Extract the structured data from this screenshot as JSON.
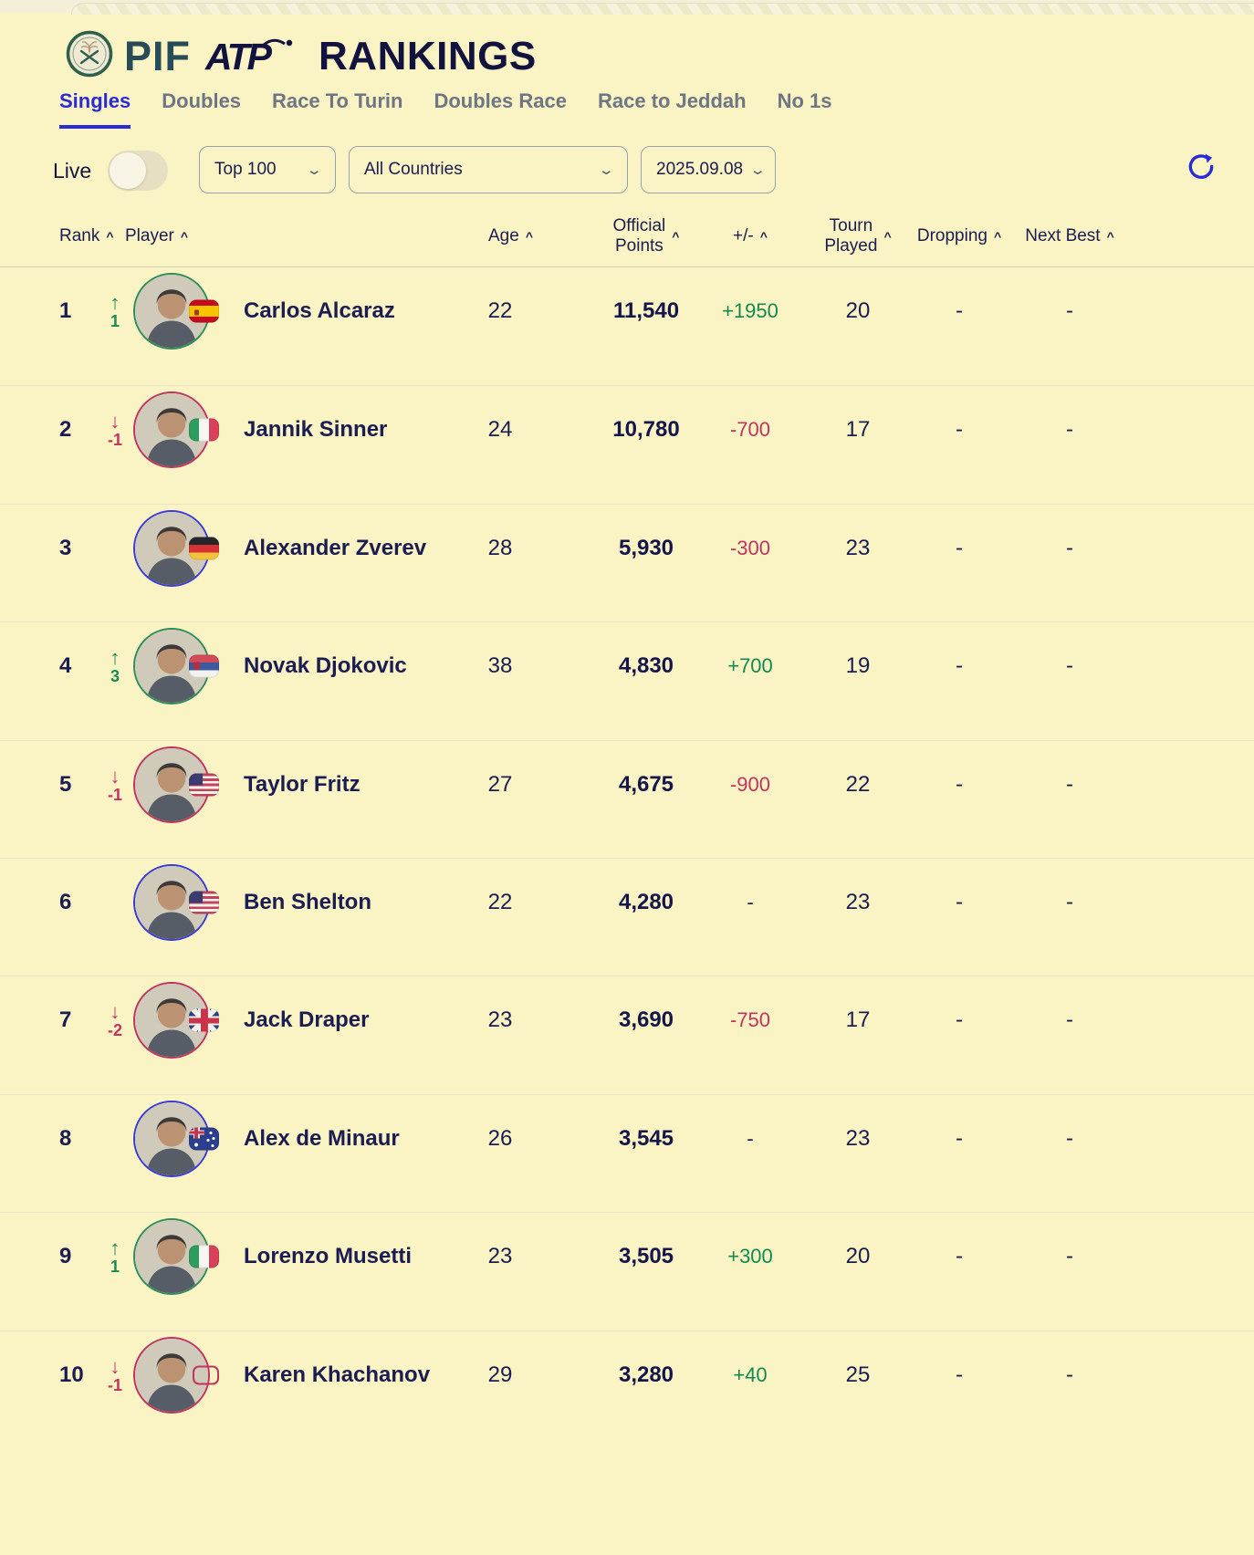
{
  "brand": {
    "pif": "PIF",
    "atp": "ATP",
    "rankings": "RANKINGS",
    "pif_logo_icon": "pif-seal-logo",
    "atp_logo_icon": "atp-logo"
  },
  "tabs": [
    {
      "label": "Singles",
      "active": true
    },
    {
      "label": "Doubles",
      "active": false
    },
    {
      "label": "Race To Turin",
      "active": false
    },
    {
      "label": "Doubles Race",
      "active": false
    },
    {
      "label": "Race to Jeddah",
      "active": false
    },
    {
      "label": "No 1s",
      "active": false
    }
  ],
  "filters": {
    "live_label": "Live",
    "live_on": false,
    "range_value": "Top 100",
    "country_value": "All Countries",
    "date_value": "2025.09.08",
    "chevron_icon": "chevron-down-icon",
    "refresh_icon": "refresh-circular-arrow-icon"
  },
  "columns": {
    "rank": "Rank",
    "player": "Player",
    "age": "Age",
    "points_line1": "Official",
    "points_line2": "Points",
    "delta": "+/-",
    "tourn_line1": "Tourn",
    "tourn_line2": "Played",
    "dropping": "Dropping",
    "next_best": "Next Best",
    "sort_caret": "^"
  },
  "movement_icons": {
    "up": "↑",
    "down": "↓"
  },
  "colors": {
    "background": "#faf3c4",
    "navy_text": "#1b1c52",
    "accent_blue": "#2b2bd6",
    "up_green": "#1a8a55",
    "down_crimson": "#c2335f",
    "no_change_blue": "#3b3bd8"
  },
  "table": {
    "rows": [
      {
        "rank": "1",
        "move": "up",
        "move_value": "1",
        "name": "Carlos Alcaraz",
        "flag": "es",
        "age": "22",
        "points": "11,540",
        "delta": "+1950",
        "delta_dir": "up",
        "tourn": "20",
        "dropping": "-",
        "next_best": "-"
      },
      {
        "rank": "2",
        "move": "down",
        "move_value": "-1",
        "name": "Jannik Sinner",
        "flag": "it",
        "age": "24",
        "points": "10,780",
        "delta": "-700",
        "delta_dir": "down",
        "tourn": "17",
        "dropping": "-",
        "next_best": "-"
      },
      {
        "rank": "3",
        "move": "none",
        "move_value": "",
        "name": "Alexander Zverev",
        "flag": "de",
        "age": "28",
        "points": "5,930",
        "delta": "-300",
        "delta_dir": "down",
        "tourn": "23",
        "dropping": "-",
        "next_best": "-"
      },
      {
        "rank": "4",
        "move": "up",
        "move_value": "3",
        "name": "Novak Djokovic",
        "flag": "rs",
        "age": "38",
        "points": "4,830",
        "delta": "+700",
        "delta_dir": "up",
        "tourn": "19",
        "dropping": "-",
        "next_best": "-"
      },
      {
        "rank": "5",
        "move": "down",
        "move_value": "-1",
        "name": "Taylor Fritz",
        "flag": "us",
        "age": "27",
        "points": "4,675",
        "delta": "-900",
        "delta_dir": "down",
        "tourn": "22",
        "dropping": "-",
        "next_best": "-"
      },
      {
        "rank": "6",
        "move": "none",
        "move_value": "",
        "name": "Ben Shelton",
        "flag": "us",
        "age": "22",
        "points": "4,280",
        "delta": "-",
        "delta_dir": "none",
        "tourn": "23",
        "dropping": "-",
        "next_best": "-"
      },
      {
        "rank": "7",
        "move": "down",
        "move_value": "-2",
        "name": "Jack Draper",
        "flag": "gb",
        "age": "23",
        "points": "3,690",
        "delta": "-750",
        "delta_dir": "down",
        "tourn": "17",
        "dropping": "-",
        "next_best": "-"
      },
      {
        "rank": "8",
        "move": "none",
        "move_value": "",
        "name": "Alex de Minaur",
        "flag": "au",
        "age": "26",
        "points": "3,545",
        "delta": "-",
        "delta_dir": "none",
        "tourn": "23",
        "dropping": "-",
        "next_best": "-"
      },
      {
        "rank": "9",
        "move": "up",
        "move_value": "1",
        "name": "Lorenzo Musetti",
        "flag": "it",
        "age": "23",
        "points": "3,505",
        "delta": "+300",
        "delta_dir": "up",
        "tourn": "20",
        "dropping": "-",
        "next_best": "-"
      },
      {
        "rank": "10",
        "move": "down",
        "move_value": "-1",
        "name": "Karen Khachanov",
        "flag": "none",
        "age": "29",
        "points": "3,280",
        "delta": "+40",
        "delta_dir": "up",
        "tourn": "25",
        "dropping": "-",
        "next_best": "-"
      }
    ]
  }
}
